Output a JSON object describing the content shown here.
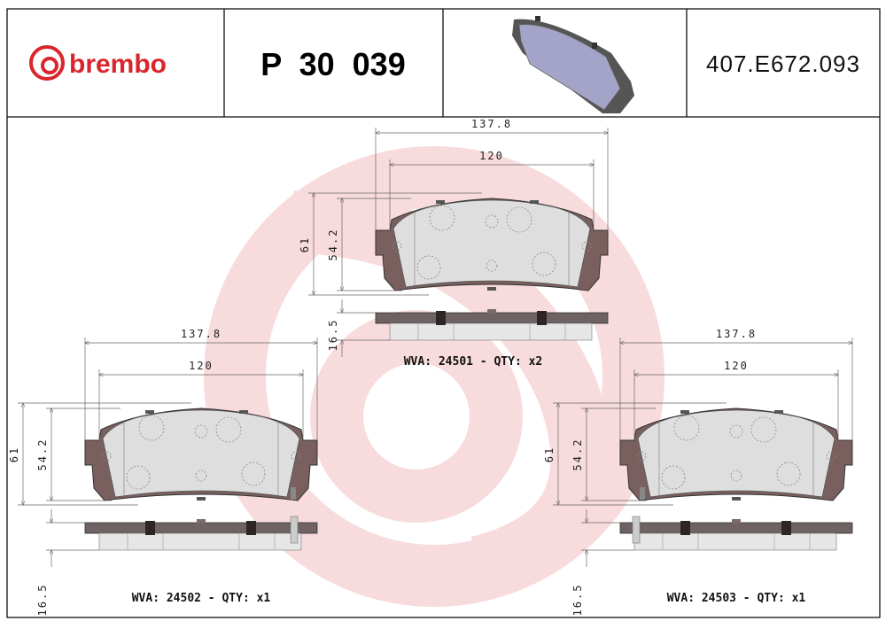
{
  "header": {
    "logo_text": "brembo",
    "part_number": "P 30 039",
    "reference_code": "407.E672.093",
    "brand_color": "#d9252b"
  },
  "drawings": [
    {
      "overall_width": "137.8",
      "friction_width": "120",
      "overall_height": "61",
      "friction_height": "54.2",
      "thickness": "16.5",
      "wva_label": "WVA: 24501 - QTY: x2"
    },
    {
      "overall_width": "137.8",
      "friction_width": "120",
      "overall_height": "61",
      "friction_height": "54.2",
      "thickness": "16.5",
      "wva_label": "WVA: 24502 - QTY: x1"
    },
    {
      "overall_width": "137.8",
      "friction_width": "120",
      "overall_height": "61",
      "friction_height": "54.2",
      "thickness": "16.5",
      "wva_label": "WVA: 24503 - QTY: x1"
    }
  ],
  "icons": {
    "logo": "brembo-logo-icon",
    "preview": "brake-pad-3d-icon",
    "watermark": "brembo-watermark"
  }
}
